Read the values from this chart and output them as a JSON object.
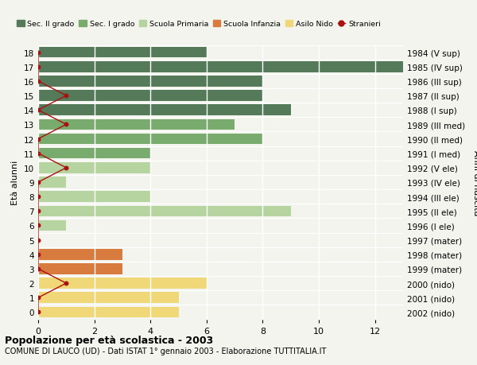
{
  "ages": [
    18,
    17,
    16,
    15,
    14,
    13,
    12,
    11,
    10,
    9,
    8,
    7,
    6,
    5,
    4,
    3,
    2,
    1,
    0
  ],
  "years": [
    "1984 (V sup)",
    "1985 (IV sup)",
    "1986 (III sup)",
    "1987 (II sup)",
    "1988 (I sup)",
    "1989 (III med)",
    "1990 (II med)",
    "1991 (I med)",
    "1992 (V ele)",
    "1993 (IV ele)",
    "1994 (III ele)",
    "1995 (II ele)",
    "1996 (I ele)",
    "1997 (mater)",
    "1998 (mater)",
    "1999 (mater)",
    "2000 (nido)",
    "2001 (nido)",
    "2002 (nido)"
  ],
  "bar_values": [
    6,
    13,
    8,
    8,
    9,
    7,
    8,
    4,
    4,
    1,
    4,
    9,
    1,
    0,
    3,
    3,
    6,
    5,
    5
  ],
  "stranieri_x": [
    0,
    0,
    0,
    1,
    0,
    1,
    0,
    0,
    1,
    0,
    0,
    0,
    0,
    0,
    0,
    0,
    1,
    0,
    0
  ],
  "colors": {
    "sec2": "#547a5a",
    "sec1": "#7aab6e",
    "primaria": "#b5d4a0",
    "infanzia": "#d87b3e",
    "nido": "#f0d878",
    "stranieri": "#aa1111",
    "bg": "#f4f4ee"
  },
  "title_bold": "Popolazione per età scolastica - 2003",
  "subtitle": "COMUNE DI LAUCO (UD) - Dati ISTAT 1° gennaio 2003 - Elaborazione TUTTITALIA.IT",
  "ylabel_left": "Età alunni",
  "ylabel_right": "Anni di nascita",
  "xlim": [
    0,
    13
  ],
  "xticks": [
    0,
    2,
    4,
    6,
    8,
    10,
    12
  ],
  "legend_labels": [
    "Sec. II grado",
    "Sec. I grado",
    "Scuola Primaria",
    "Scuola Infanzia",
    "Asilo Nido",
    "Stranieri"
  ]
}
